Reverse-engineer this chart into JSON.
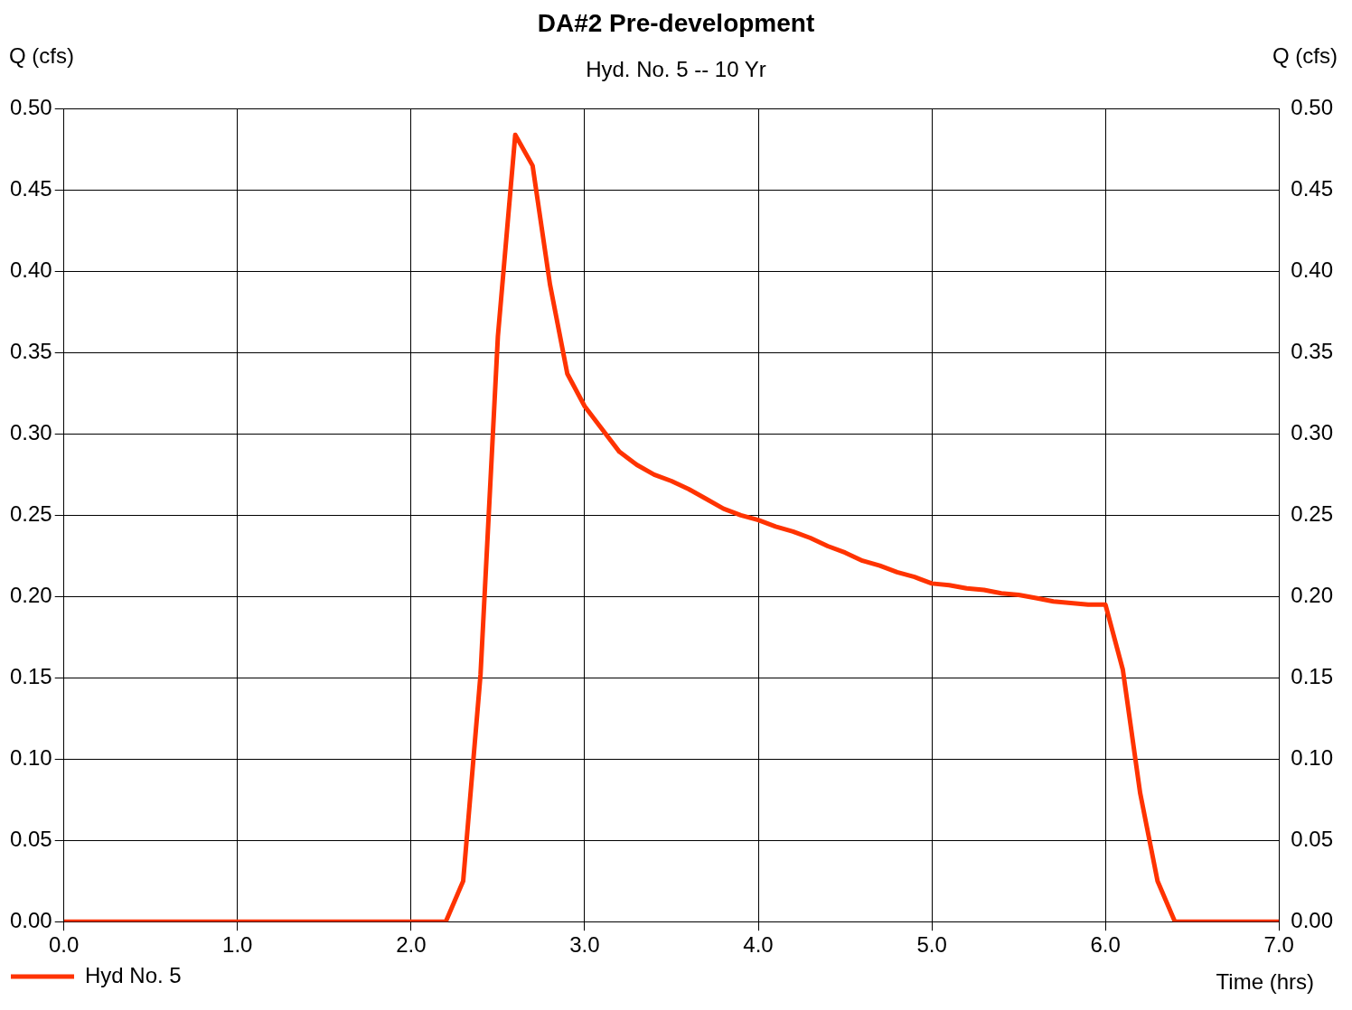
{
  "chart_data": {
    "type": "line",
    "title": "DA#2 Pre-development",
    "subtitle": "Hyd. No. 5 -- 10 Yr",
    "xlabel": "Time (hrs)",
    "ylabel": "Q (cfs)",
    "y2label": "Q (cfs)",
    "series": [
      {
        "name": "Hyd No. 5",
        "color": "#ff3300",
        "x": [
          0,
          2.2,
          2.3,
          2.4,
          2.5,
          2.6,
          2.7,
          2.8,
          2.9,
          3.0,
          3.1,
          3.2,
          3.3,
          3.4,
          3.5,
          3.6,
          3.7,
          3.8,
          3.9,
          4.0,
          4.1,
          4.2,
          4.3,
          4.4,
          4.5,
          4.6,
          4.7,
          4.8,
          4.9,
          5.0,
          5.1,
          5.2,
          5.3,
          5.4,
          5.5,
          5.6,
          5.7,
          5.8,
          5.9,
          6.0,
          6.1,
          6.2,
          6.3,
          6.4,
          7.0
        ],
        "values": [
          0,
          0,
          0.025,
          0.152,
          0.36,
          0.484,
          0.465,
          0.392,
          0.337,
          0.317,
          0.303,
          0.289,
          0.281,
          0.275,
          0.271,
          0.266,
          0.26,
          0.254,
          0.25,
          0.247,
          0.243,
          0.24,
          0.236,
          0.231,
          0.227,
          0.222,
          0.219,
          0.215,
          0.212,
          0.208,
          0.207,
          0.205,
          0.204,
          0.202,
          0.201,
          0.199,
          0.197,
          0.196,
          0.195,
          0.195,
          0.155,
          0.079,
          0.025,
          0,
          0
        ]
      }
    ],
    "xlim": [
      0,
      7
    ],
    "xticks": [
      {
        "value": 0,
        "label": "0.0"
      },
      {
        "value": 1,
        "label": "1.0"
      },
      {
        "value": 2,
        "label": "2.0"
      },
      {
        "value": 3,
        "label": "3.0"
      },
      {
        "value": 4,
        "label": "4.0"
      },
      {
        "value": 5,
        "label": "5.0"
      },
      {
        "value": 6,
        "label": "6.0"
      },
      {
        "value": 7,
        "label": "7.0"
      }
    ],
    "ylim": [
      0,
      0.5
    ],
    "yticks": [
      {
        "value": 0,
        "label": "0.00"
      },
      {
        "value": 0.05,
        "label": "0.05"
      },
      {
        "value": 0.1,
        "label": "0.10"
      },
      {
        "value": 0.15,
        "label": "0.15"
      },
      {
        "value": 0.2,
        "label": "0.20"
      },
      {
        "value": 0.25,
        "label": "0.25"
      },
      {
        "value": 0.3,
        "label": "0.30"
      },
      {
        "value": 0.35,
        "label": "0.35"
      },
      {
        "value": 0.4,
        "label": "0.40"
      },
      {
        "value": 0.45,
        "label": "0.45"
      },
      {
        "value": 0.5,
        "label": "0.50"
      }
    ],
    "y2lim": [
      0,
      0.5
    ],
    "y2ticks": [
      {
        "value": 0,
        "label": "0.00"
      },
      {
        "value": 0.05,
        "label": "0.05"
      },
      {
        "value": 0.1,
        "label": "0.10"
      },
      {
        "value": 0.15,
        "label": "0.15"
      },
      {
        "value": 0.2,
        "label": "0.20"
      },
      {
        "value": 0.25,
        "label": "0.25"
      },
      {
        "value": 0.3,
        "label": "0.30"
      },
      {
        "value": 0.35,
        "label": "0.35"
      },
      {
        "value": 0.4,
        "label": "0.40"
      },
      {
        "value": 0.45,
        "label": "0.45"
      },
      {
        "value": 0.5,
        "label": "0.50"
      }
    ],
    "grid": true,
    "legend": "bottom left",
    "marker": "none",
    "line_style": "solid"
  }
}
